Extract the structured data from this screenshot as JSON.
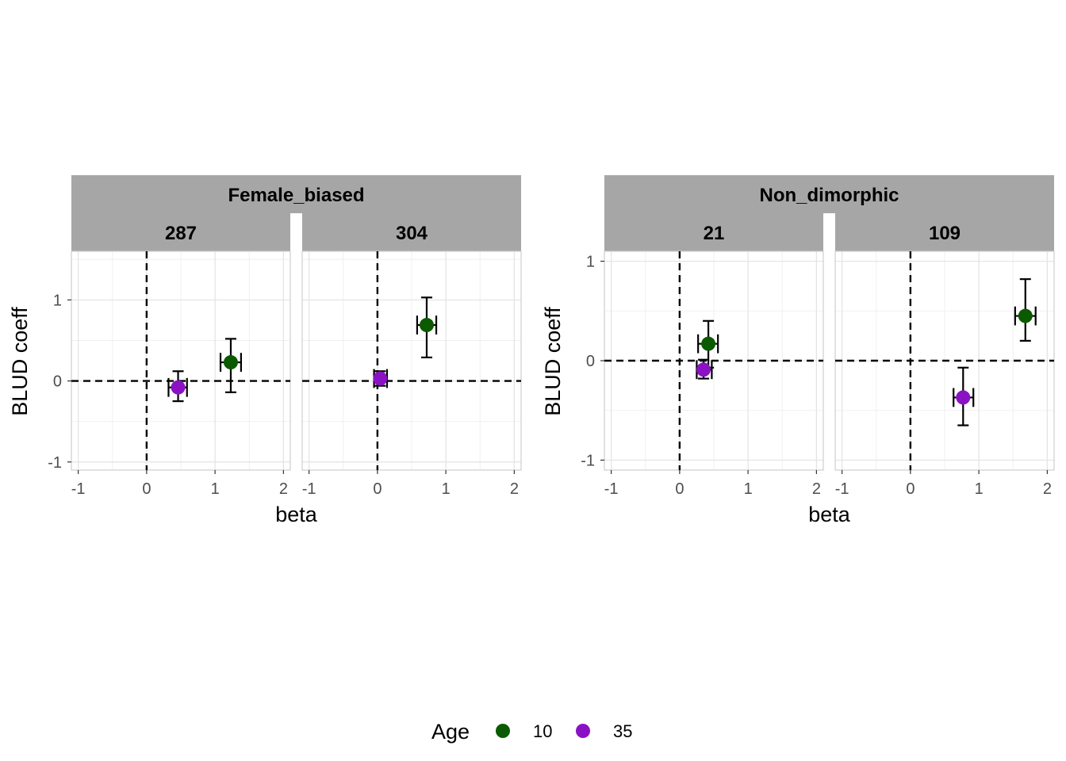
{
  "chart_data": {
    "type": "scatter",
    "xlabel": "beta",
    "ylabel": "BLUD coeff",
    "grid": true,
    "legend": {
      "title": "Age",
      "position": "bottom",
      "items": [
        {
          "label": "10",
          "color": "#0b5a00"
        },
        {
          "label": "35",
          "color": "#8a12c4"
        }
      ]
    },
    "x_ticks": [
      "-1",
      "0",
      "1",
      "2"
    ],
    "reference_lines": {
      "x": 0,
      "y": 0,
      "style": "dashed"
    },
    "groups": [
      {
        "title": "Female_biased",
        "ylim": [
          -1.1,
          1.6
        ],
        "y_ticks": [
          "1",
          "0",
          "-1"
        ],
        "panels": [
          {
            "title": "287",
            "xlim": [
              -1.1,
              2.1
            ],
            "points": [
              {
                "age": "10",
                "x": 1.23,
                "y": 0.23,
                "xmin": 1.08,
                "xmax": 1.38,
                "ymin": -0.14,
                "ymax": 0.52
              },
              {
                "age": "35",
                "x": 0.46,
                "y": -0.08,
                "xmin": 0.32,
                "xmax": 0.59,
                "ymin": -0.25,
                "ymax": 0.12
              }
            ]
          },
          {
            "title": "304",
            "xlim": [
              -1.1,
              2.1
            ],
            "points": [
              {
                "age": "10",
                "x": 0.72,
                "y": 0.69,
                "xmin": 0.58,
                "xmax": 0.86,
                "ymin": 0.29,
                "ymax": 1.03
              },
              {
                "age": "35",
                "x": 0.04,
                "y": 0.03,
                "xmin": -0.05,
                "xmax": 0.14,
                "ymin": -0.06,
                "ymax": 0.12
              }
            ]
          }
        ]
      },
      {
        "title": "Non_dimorphic",
        "ylim": [
          -1.1,
          1.1
        ],
        "y_ticks": [
          "1",
          "0",
          "-1"
        ],
        "panels": [
          {
            "title": "21",
            "xlim": [
              -1.1,
              2.1
            ],
            "points": [
              {
                "age": "10",
                "x": 0.42,
                "y": 0.17,
                "xmin": 0.27,
                "xmax": 0.56,
                "ymin": -0.07,
                "ymax": 0.4
              },
              {
                "age": "35",
                "x": 0.35,
                "y": -0.09,
                "xmin": 0.25,
                "xmax": 0.47,
                "ymin": -0.18,
                "ymax": 0.01
              }
            ]
          },
          {
            "title": "109",
            "xlim": [
              -1.1,
              2.1
            ],
            "points": [
              {
                "age": "10",
                "x": 1.68,
                "y": 0.45,
                "xmin": 1.53,
                "xmax": 1.83,
                "ymin": 0.2,
                "ymax": 0.82
              },
              {
                "age": "35",
                "x": 0.77,
                "y": -0.37,
                "xmin": 0.63,
                "xmax": 0.92,
                "ymin": -0.65,
                "ymax": -0.07
              }
            ]
          }
        ]
      }
    ]
  }
}
